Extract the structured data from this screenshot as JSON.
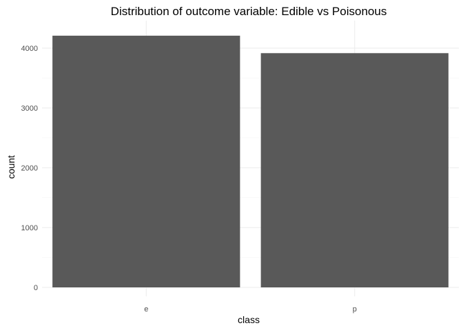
{
  "chart_data": {
    "type": "bar",
    "title": "Distribution of outcome variable: Edible vs Poisonous",
    "xlabel": "class",
    "ylabel": "count",
    "categories": [
      "e",
      "p"
    ],
    "values": [
      4208,
      3916
    ],
    "ylim": [
      0,
      4400
    ],
    "yticks": [
      0,
      1000,
      2000,
      3000,
      4000
    ],
    "grid": true,
    "bar_color": "#595959",
    "grid_color": "#ebebeb"
  }
}
